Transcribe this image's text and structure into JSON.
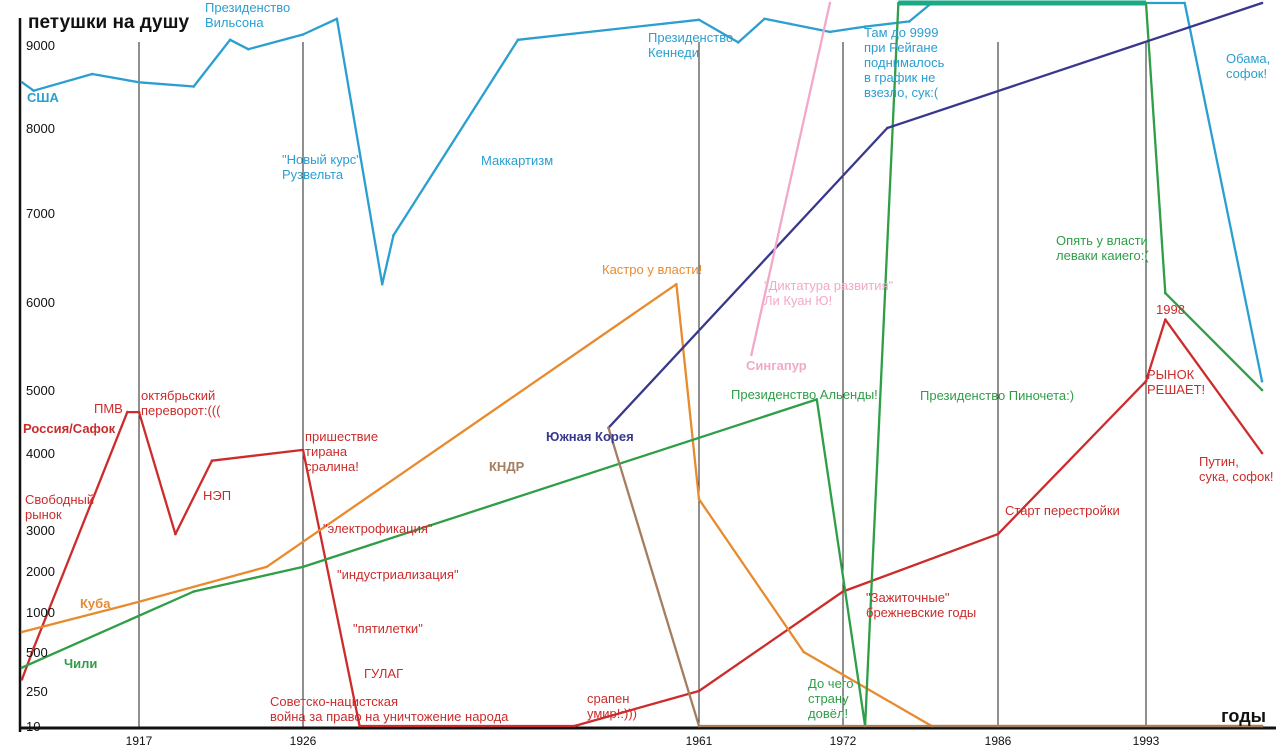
{
  "chart_data": {
    "type": "line",
    "title": "петушки на душу",
    "xlabel": "годы",
    "ylabel": "",
    "x_ticks": [
      "1917",
      "1926",
      "1961",
      "1972",
      "1986",
      "1993"
    ],
    "y_ticks": [
      "10",
      "250",
      "500",
      "1000",
      "2000",
      "3000",
      "4000",
      "5000",
      "6000",
      "7000",
      "8000",
      "9000"
    ],
    "grid": "vertical lines at x tick years",
    "colors": {
      "usa": "#2a9fd0",
      "russia": "#cc2c2c",
      "cuba": "#e88a2e",
      "chile": "#2e9e47",
      "skorea": "#38388c",
      "nkorea": "#a57d5f",
      "singapore": "#f2a9c9",
      "axis": "#111111"
    },
    "series": [
      {
        "name": "США",
        "points": [
          [
            "1907",
            8550
          ],
          [
            "1908",
            8450
          ],
          [
            "1913",
            8650
          ],
          [
            "1917",
            8550
          ],
          [
            "1920",
            8500
          ],
          [
            "1922",
            9100
          ],
          [
            "1923",
            8950
          ],
          [
            "1926",
            9200
          ],
          [
            "1929",
            9500
          ],
          [
            "1933",
            6200
          ],
          [
            "1934",
            6750
          ],
          [
            "1945",
            9100
          ],
          [
            "1961",
            9480
          ],
          [
            "1964",
            9050
          ],
          [
            "1966",
            9500
          ],
          [
            "1968",
            9400
          ],
          [
            "1971",
            9250
          ],
          [
            "1974",
            9350
          ],
          [
            "1978",
            9450
          ],
          [
            "1980",
            9800
          ],
          [
            "1995",
            9800
          ],
          [
            "1999",
            5100
          ]
        ]
      },
      {
        "name": "Россия/Сафок",
        "points": [
          [
            "1907",
            325
          ],
          [
            "1908",
            550
          ],
          [
            "1916",
            4650
          ],
          [
            "1917",
            4650
          ],
          [
            "1919",
            2900
          ],
          [
            "1921",
            3900
          ],
          [
            "1926",
            4050
          ],
          [
            "1931",
            10
          ],
          [
            "1950",
            10
          ],
          [
            "1961",
            250
          ],
          [
            "1972",
            1500
          ],
          [
            "1986",
            2900
          ],
          [
            "1993",
            5100
          ],
          [
            "1994",
            5800
          ],
          [
            "1999",
            4000
          ]
        ]
      },
      {
        "name": "Куба",
        "points": [
          [
            "1907",
            750
          ],
          [
            "1917",
            1250
          ],
          [
            "1924",
            2100
          ],
          [
            "1959",
            6200
          ],
          [
            "1961",
            3400
          ],
          [
            "1969",
            500
          ],
          [
            "1980",
            10
          ],
          [
            "1986",
            10
          ],
          [
            "1999",
            10
          ]
        ]
      },
      {
        "name": "Чили",
        "points": [
          [
            "1907",
            400
          ],
          [
            "1920",
            1500
          ],
          [
            "1926",
            2100
          ],
          [
            "1970",
            4850
          ],
          [
            "1974",
            10
          ],
          [
            "1977",
            9800
          ],
          [
            "1993",
            9800
          ],
          [
            "1994",
            6100
          ],
          [
            "1999",
            5000
          ]
        ]
      },
      {
        "name": "Южная Корея",
        "points": [
          [
            "1953",
            4400
          ],
          [
            "1976",
            8000
          ],
          [
            "1999",
            9800
          ]
        ]
      },
      {
        "name": "КНДР",
        "points": [
          [
            "1953",
            4400
          ],
          [
            "1961",
            10
          ],
          [
            "1999",
            10
          ]
        ]
      },
      {
        "name": "Сингапур",
        "points": [
          [
            "1965",
            5400
          ],
          [
            "1971",
            9800
          ]
        ]
      }
    ],
    "annotations": [
      "Президенство\nВильсона",
      "\"Новый курс\"\nРузвельта",
      "Маккартизм",
      "Президенство\nКеннеди",
      "Там до 9999\nпри Рейгане\nподнималось\nв график не\nвзезло, сук:(",
      "Обама,\nсофок!",
      "США",
      "ПМВ",
      "октябрьский\nпереворот:(((",
      "Россия/Сафок",
      "Свободный\nрынок",
      "НЭП",
      "пришествие\nтирана\nсралина!",
      "\"электрофикация\"",
      "\"индустриализация\"",
      "\"пятилетки\"",
      "ГУЛАГ",
      "Советско-нацистская\nвойна за право на уничтожение народа",
      "срапен\nумир!:)))",
      "Кастро у власти!",
      "Куба",
      "Чили",
      "Президенство Альенды!",
      "Президенство Пиночета:)",
      "До чего\nстрану\nдовёл!",
      "Опять у власти\nлеваки каиего:(",
      "Южная Корея",
      "КНДР",
      "\"Диктатура развития\"\nЛи Куан Ю!",
      "Сингапур",
      "\"Зажиточные\"\nбрежневские годы",
      "Старт перестройки",
      "1998",
      "РЫНОК\nРЕШАЕТ!",
      "Путин,\nсука, софок!"
    ]
  }
}
